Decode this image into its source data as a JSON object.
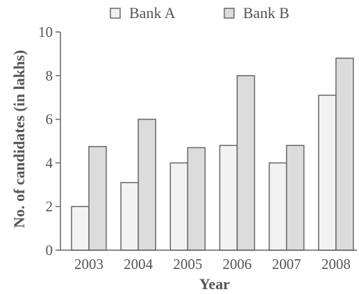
{
  "chart_data": {
    "type": "bar",
    "title": "",
    "xlabel": "Year",
    "ylabel": "No. of candidates (in lakhs)",
    "categories": [
      "2003",
      "2004",
      "2005",
      "2006",
      "2007",
      "2008"
    ],
    "series": [
      {
        "name": "Bank A",
        "values": [
          2.0,
          3.1,
          4.0,
          4.8,
          4.0,
          7.1
        ],
        "color": "#f2f2f2"
      },
      {
        "name": "Bank B",
        "values": [
          4.75,
          6.0,
          4.7,
          8.0,
          4.8,
          8.8
        ],
        "color": "#dcdcdc"
      }
    ],
    "ylim": [
      0,
      10
    ],
    "yticks": [
      0,
      2,
      4,
      6,
      8,
      10
    ],
    "grid": false,
    "legend_position": "top"
  },
  "colors": {
    "axis": "#666666",
    "bar_stroke": "#666666",
    "text": "#555555"
  }
}
